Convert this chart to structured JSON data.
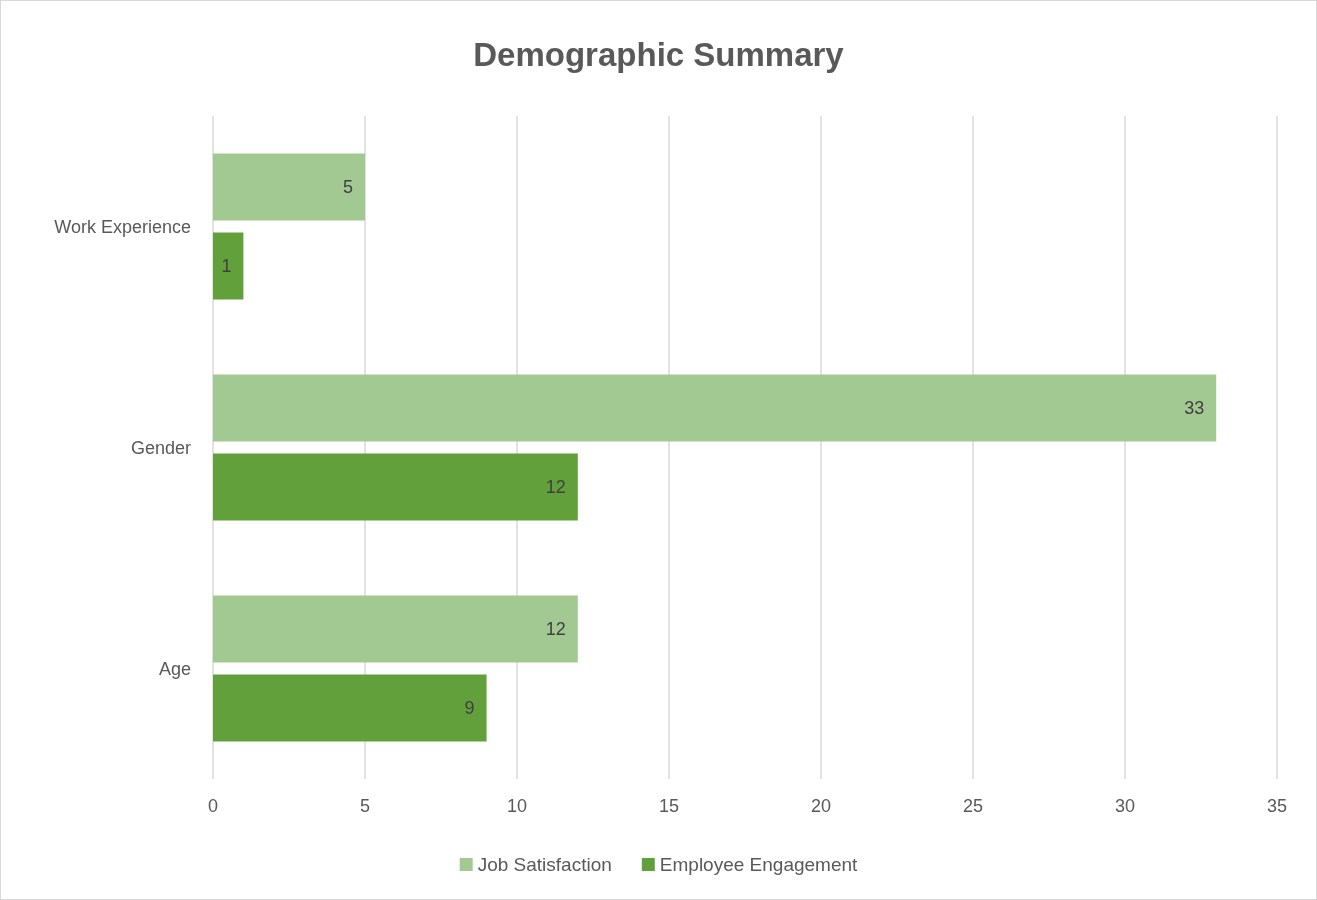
{
  "chart_data": {
    "type": "bar",
    "orientation": "horizontal",
    "title": "Demographic Summary",
    "categories": [
      "Work Experience",
      "Gender",
      "Age"
    ],
    "series": [
      {
        "name": "Job Satisfaction",
        "color": "#a3c993",
        "values": [
          5,
          33,
          12
        ]
      },
      {
        "name": "Employee Engagement",
        "color": "#62a03c",
        "values": [
          1,
          12,
          9
        ]
      }
    ],
    "xlim": [
      0,
      35
    ],
    "xticks": [
      0,
      5,
      10,
      15,
      20,
      25,
      30,
      35
    ],
    "grid": "x",
    "legend": "bottom",
    "data_labels": true
  }
}
